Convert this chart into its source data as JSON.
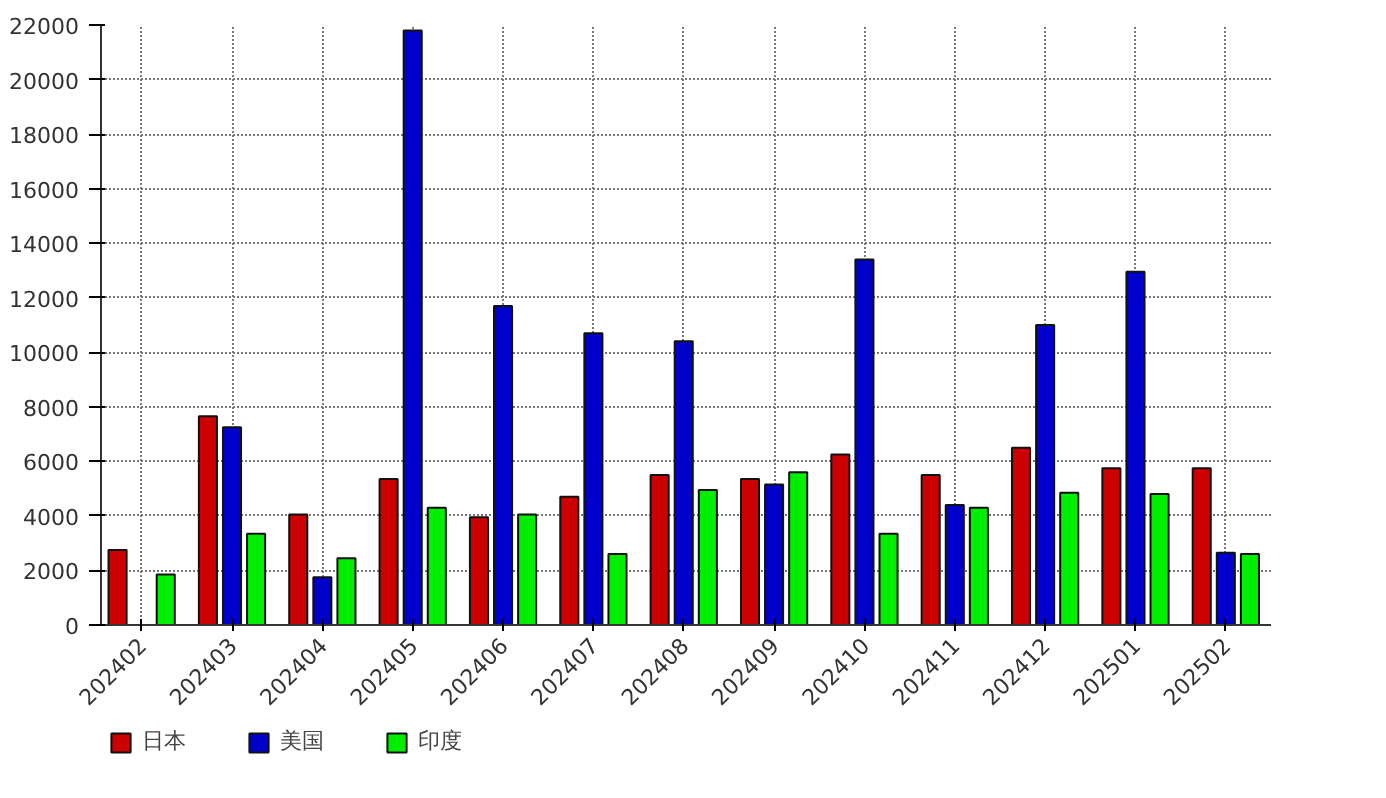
{
  "chart_data": {
    "type": "bar",
    "categories": [
      "202402",
      "202403",
      "202404",
      "202405",
      "202406",
      "202407",
      "202408",
      "202409",
      "202410",
      "202411",
      "202412",
      "202501",
      "202502"
    ],
    "series": [
      {
        "name": "日本",
        "color": "#cc0000",
        "values": [
          2750,
          7650,
          4050,
          5350,
          3950,
          4700,
          5500,
          5350,
          6250,
          5500,
          6500,
          5750,
          5750
        ]
      },
      {
        "name": "美国",
        "color": "#0000cc",
        "values": [
          null,
          7250,
          1750,
          21800,
          11700,
          10700,
          10400,
          5150,
          13400,
          4400,
          11000,
          12950,
          2650
        ]
      },
      {
        "name": "印度",
        "color": "#00ee00",
        "values": [
          1850,
          3350,
          2450,
          4300,
          4050,
          2600,
          4950,
          5600,
          3350,
          4300,
          4850,
          4800,
          2600
        ]
      }
    ],
    "ylim": [
      0,
      22000
    ],
    "yticks": [
      0,
      2000,
      4000,
      6000,
      8000,
      10000,
      12000,
      14000,
      16000,
      18000,
      20000,
      22000
    ],
    "grid": true,
    "legend": "bottom"
  }
}
